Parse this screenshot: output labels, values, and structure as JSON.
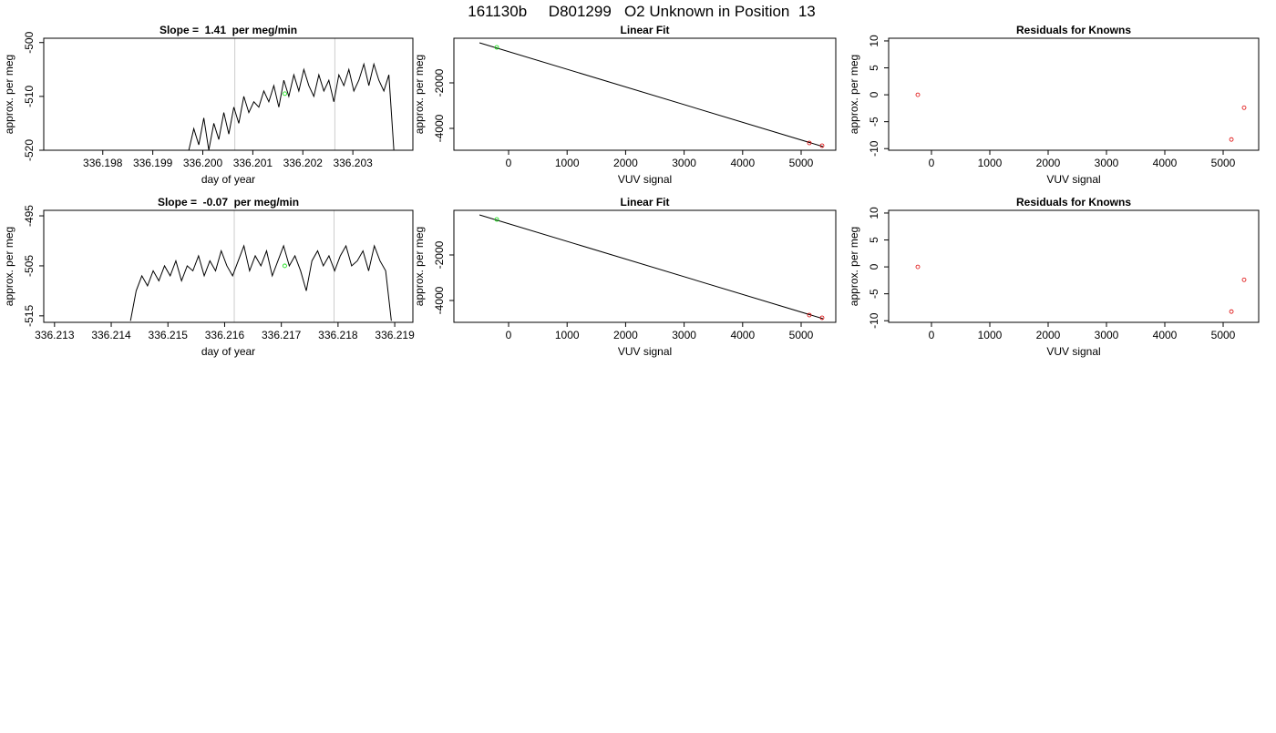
{
  "title": "161130b     D801299   O2 Unknown in Position  13",
  "chart_data": [
    {
      "type": "line",
      "title": "Slope =  1.41  per meg/min",
      "xlabel": "day of year",
      "ylabel": "approx. per meg",
      "color": "#000000",
      "x": [
        336.19972,
        336.19982,
        336.19992,
        336.20002,
        336.20012,
        336.20022,
        336.20032,
        336.20042,
        336.20052,
        336.20062,
        336.20072,
        336.20082,
        336.20092,
        336.20102,
        336.20112,
        336.20122,
        336.20132,
        336.20142,
        336.20152,
        336.20162,
        336.20172,
        336.20182,
        336.20192,
        336.20202,
        336.20212,
        336.20222,
        336.20232,
        336.20242,
        336.20252,
        336.20262,
        336.20272,
        336.20282,
        336.20292,
        336.20302,
        336.20312,
        336.20322,
        336.20332,
        336.20342,
        336.20352,
        336.20362,
        336.20372,
        336.20382
      ],
      "values": [
        -520,
        -516,
        -519,
        -514,
        -520,
        -515,
        -518,
        -513,
        -517,
        -512,
        -515,
        -510,
        -513,
        -511,
        -512,
        -509,
        -511,
        -508,
        -512,
        -507,
        -510,
        -506,
        -509,
        -505,
        -508,
        -510,
        -506,
        -509,
        -507,
        -511,
        -506,
        -508,
        -505,
        -509,
        -507,
        -504,
        -508,
        -504,
        -507,
        -509,
        -506,
        -520
      ],
      "marker": {
        "x": [
          336.20164
        ],
        "y": [
          -509.5
        ],
        "color": "#00dd00"
      },
      "vlines": [
        336.20064,
        336.20264
      ],
      "vline_color": "#cccccc",
      "xlim": [
        336.19682,
        336.2042
      ],
      "ylim": [
        -520,
        -499.2
      ],
      "xticks": [
        336.198,
        336.199,
        {
          "value": 336.2,
          "label": "336.200"
        },
        336.201,
        336.202,
        336.203
      ],
      "yticks": [
        -500,
        -510,
        -520
      ]
    },
    {
      "type": "scatter",
      "title": "Linear Fit",
      "xlabel": "VUV signal",
      "ylabel": "approx. per meg",
      "series": [
        {
          "color": "#dd0000",
          "x": [
            5140,
            5358
          ],
          "values": [
            -4640,
            -4760
          ]
        },
        {
          "color": "#00dd00",
          "x": [
            -202
          ],
          "values": [
            -440
          ]
        }
      ],
      "fit": {
        "x": [
          -498,
          5374
        ],
        "y": [
          -240,
          -4800
        ],
        "color": "#000000"
      },
      "xlim": [
        -935,
        5592
      ],
      "ylim": [
        -4960,
        -40
      ],
      "xticks": [
        0,
        1000,
        2000,
        3000,
        4000,
        5000
      ],
      "yticks": [
        -2000,
        -4000
      ]
    },
    {
      "type": "scatter",
      "title": "Residuals for Knowns",
      "xlabel": "VUV signal",
      "ylabel": "approx. per meg",
      "series": [
        {
          "color": "#dd0000",
          "x": [
            -234,
            5141,
            5359
          ],
          "values": [
            0,
            -8.3,
            -2.4
          ]
        }
      ],
      "xlim": [
        -734,
        5609
      ],
      "ylim": [
        -10.3,
        10.5
      ],
      "xticks": [
        0,
        1000,
        2000,
        3000,
        4000,
        5000
      ],
      "yticks": [
        10,
        5,
        0,
        -5,
        -10
      ]
    },
    {
      "type": "line",
      "title": "Slope =  -0.07  per meg/min",
      "xlabel": "day of year",
      "ylabel": "approx. per meg",
      "color": "#000000",
      "x": [
        336.21434,
        336.21444,
        336.21454,
        336.21464,
        336.21474,
        336.21484,
        336.21494,
        336.21504,
        336.21514,
        336.21524,
        336.21534,
        336.21544,
        336.21554,
        336.21564,
        336.21574,
        336.21584,
        336.21594,
        336.21604,
        336.21614,
        336.21624,
        336.21634,
        336.21644,
        336.21654,
        336.21664,
        336.21674,
        336.21684,
        336.21694,
        336.21704,
        336.21714,
        336.21724,
        336.21734,
        336.21744,
        336.21754,
        336.21764,
        336.21774,
        336.21784,
        336.21794,
        336.21804,
        336.21814,
        336.21824,
        336.21834,
        336.21844,
        336.21854,
        336.21864,
        336.21874,
        336.21884,
        336.21894
      ],
      "values": [
        -516,
        -510,
        -507,
        -509,
        -506,
        -508,
        -505,
        -507,
        -504,
        -508,
        -505,
        -506,
        -503,
        -507,
        -504,
        -506,
        -502,
        -505,
        -507,
        -504,
        -501,
        -506,
        -503,
        -505,
        -502,
        -507,
        -504,
        -501,
        -505,
        -503,
        -506,
        -510,
        -504,
        -502,
        -505,
        -503,
        -506,
        -503,
        -501,
        -505,
        -504,
        -502,
        -506,
        -501,
        -504,
        -506,
        -516
      ],
      "marker": {
        "x": [
          336.21706
        ],
        "y": [
          -505
        ],
        "color": "#00dd00"
      },
      "vlines": [
        336.21617,
        336.21793
      ],
      "vline_color": "#cccccc",
      "xlim": [
        336.21281,
        336.21932
      ],
      "ylim": [
        -516.3,
        -493.9
      ],
      "xticks": [
        336.213,
        336.214,
        336.215,
        336.216,
        336.217,
        336.218,
        336.219
      ],
      "yticks": [
        -495,
        -505,
        -515
      ]
    },
    {
      "type": "scatter",
      "title": "Linear Fit",
      "xlabel": "VUV signal",
      "ylabel": "approx. per meg",
      "series": [
        {
          "color": "#dd0000",
          "x": [
            5140,
            5358
          ],
          "values": [
            -4640,
            -4760
          ]
        },
        {
          "color": "#00dd00",
          "x": [
            -202
          ],
          "values": [
            -440
          ]
        }
      ],
      "fit": {
        "x": [
          -498,
          5374
        ],
        "y": [
          -240,
          -4800
        ],
        "color": "#000000"
      },
      "xlim": [
        -935,
        5592
      ],
      "ylim": [
        -4960,
        -40
      ],
      "xticks": [
        0,
        1000,
        2000,
        3000,
        4000,
        5000
      ],
      "yticks": [
        -2000,
        -4000
      ]
    },
    {
      "type": "scatter",
      "title": "Residuals for Knowns",
      "xlabel": "VUV signal",
      "ylabel": "approx. per meg",
      "series": [
        {
          "color": "#dd0000",
          "x": [
            -234,
            5141,
            5359
          ],
          "values": [
            0,
            -8.3,
            -2.4
          ]
        }
      ],
      "xlim": [
        -734,
        5609
      ],
      "ylim": [
        -10.3,
        10.5
      ],
      "xticks": [
        0,
        1000,
        2000,
        3000,
        4000,
        5000
      ],
      "yticks": [
        10,
        5,
        0,
        -5,
        -10
      ]
    }
  ]
}
